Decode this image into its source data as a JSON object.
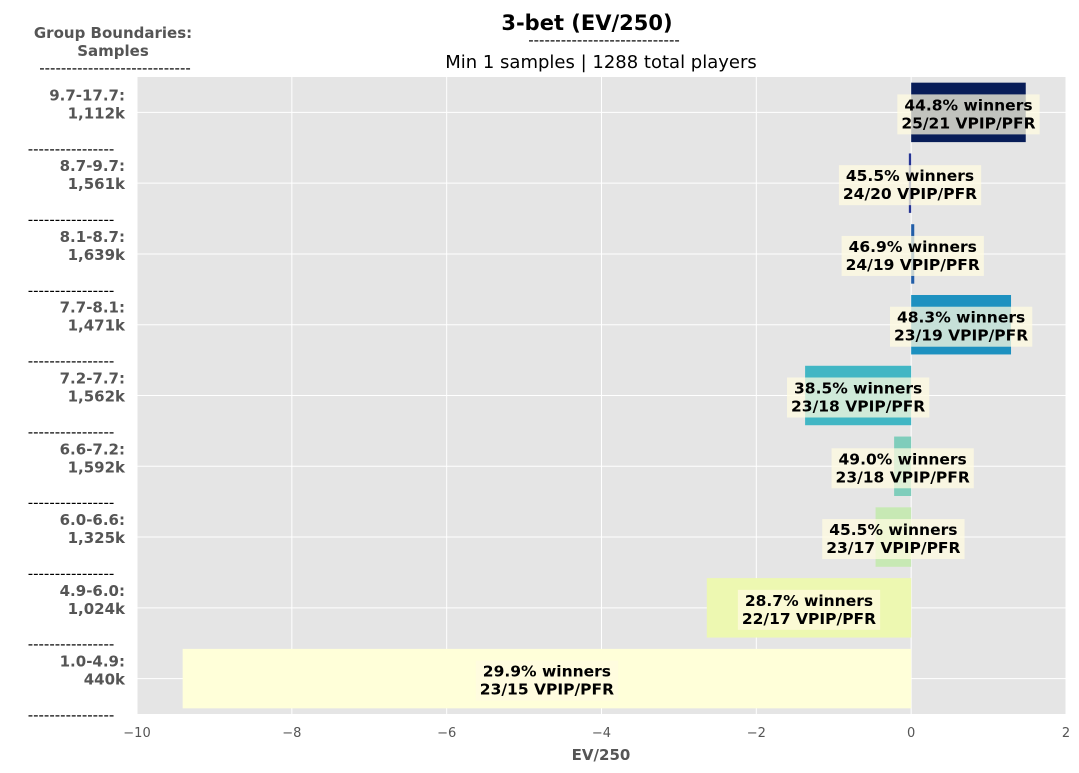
{
  "chart_data": {
    "type": "bar",
    "orientation": "horizontal",
    "title": "3-bet (EV/250)",
    "title_underline": "----------------------------",
    "subtitle": "Min 1 samples | 1288 total players",
    "side_title": [
      "Group Boundaries:",
      "Samples"
    ],
    "side_title_underline": "----------------------------",
    "group_separator": "----------------",
    "xlabel": "EV/250",
    "xlim": [
      -10,
      2
    ],
    "xticks": [
      -10,
      -8,
      -6,
      -4,
      -2,
      0,
      2
    ],
    "xtick_labels": [
      "−10",
      "−8",
      "−6",
      "−4",
      "−2",
      "0",
      "2"
    ],
    "grid": true,
    "categories": [
      {
        "range": "9.7-17.7:",
        "samples": "1,112k",
        "value": 1.48,
        "winners": "44.8% winners",
        "vpip_pfr": "25/21 VPIP/PFR",
        "color": "#081d58",
        "label_x": 1.48
      },
      {
        "range": "8.7-9.7:",
        "samples": "1,561k",
        "value": -0.03,
        "winners": "45.5% winners",
        "vpip_pfr": "24/20 VPIP/PFR",
        "color": "#253494",
        "label_x": -0.03
      },
      {
        "range": "8.1-8.7:",
        "samples": "1,639k",
        "value": 0.04,
        "winners": "46.9% winners",
        "vpip_pfr": "24/19 VPIP/PFR",
        "color": "#225ea8",
        "label_x": 0.04
      },
      {
        "range": "7.7-8.1:",
        "samples": "1,471k",
        "value": 1.29,
        "winners": "48.3% winners",
        "vpip_pfr": "23/19 VPIP/PFR",
        "color": "#1d91c0",
        "label_x": 1.29
      },
      {
        "range": "7.2-7.7:",
        "samples": "1,562k",
        "value": -1.37,
        "winners": "38.5% winners",
        "vpip_pfr": "23/18 VPIP/PFR",
        "color": "#41b6c4",
        "label_x": -1.37
      },
      {
        "range": "6.6-7.2:",
        "samples": "1,592k",
        "value": -0.22,
        "winners": "49.0% winners",
        "vpip_pfr": "23/18 VPIP/PFR",
        "color": "#7fcdbb",
        "label_x": -0.22
      },
      {
        "range": "6.0-6.6:",
        "samples": "1,325k",
        "value": -0.46,
        "winners": "45.5% winners",
        "vpip_pfr": "23/17 VPIP/PFR",
        "color": "#c7e9b4",
        "label_x": -0.46
      },
      {
        "range": "4.9-6.0:",
        "samples": "1,024k",
        "value": -2.64,
        "winners": "28.7% winners",
        "vpip_pfr": "22/17 VPIP/PFR",
        "color": "#edf8b1",
        "label_x": -2.64
      },
      {
        "range": "1.0-4.9:",
        "samples": "440k",
        "value": -9.41,
        "winners": "29.9% winners",
        "vpip_pfr": "23/15 VPIP/PFR",
        "color": "#ffffd9",
        "label_x": -9.41
      }
    ]
  }
}
